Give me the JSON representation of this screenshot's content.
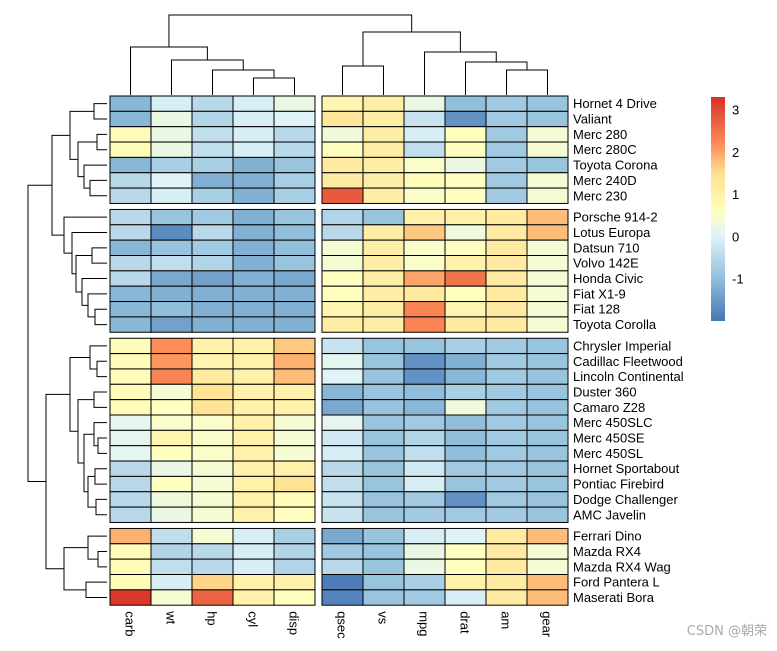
{
  "chart_data": {
    "type": "heatmap",
    "title": "",
    "rows": [
      "Hornet 4 Drive",
      "Valiant",
      "Merc 280",
      "Merc 280C",
      "Toyota Corona",
      "Merc 240D",
      "Merc 230",
      "Porsche 914-2",
      "Lotus Europa",
      "Datsun 710",
      "Volvo 142E",
      "Honda Civic",
      "Fiat X1-9",
      "Fiat 128",
      "Toyota Corolla",
      "Chrysler Imperial",
      "Cadillac Fleetwood",
      "Lincoln Continental",
      "Duster 360",
      "Camaro Z28",
      "Merc 450SLC",
      "Merc 450SE",
      "Merc 450SL",
      "Hornet Sportabout",
      "Pontiac Firebird",
      "Dodge Challenger",
      "AMC Javelin",
      "Ferrari Dino",
      "Mazda RX4",
      "Mazda RX4 Wag",
      "Ford Pantera L",
      "Maserati Bora"
    ],
    "columns": [
      "carb",
      "wt",
      "hp",
      "cyl",
      "disp",
      "qsec",
      "vs",
      "mpg",
      "drat",
      "am",
      "gear"
    ],
    "row_gaps_after": [
      6,
      14,
      26
    ],
    "column_gaps_after": [
      4
    ],
    "values": [
      [
        -1.1,
        -0.1,
        -0.5,
        -0.1,
        0.2,
        0.9,
        1.1,
        0.2,
        -1.0,
        -0.8,
        -0.9
      ],
      [
        -1.1,
        0.2,
        -0.6,
        -0.1,
        0.0,
        1.3,
        1.1,
        -0.3,
        -1.6,
        -0.8,
        -0.9
      ],
      [
        0.7,
        0.2,
        -0.4,
        -0.1,
        -0.5,
        0.3,
        1.1,
        -0.1,
        0.6,
        -0.8,
        0.4
      ],
      [
        0.7,
        0.2,
        -0.4,
        -0.1,
        -0.5,
        0.6,
        1.1,
        -0.4,
        0.6,
        -0.8,
        0.4
      ],
      [
        -1.1,
        -0.7,
        -0.7,
        -1.2,
        -0.9,
        1.2,
        1.1,
        0.5,
        0.2,
        -0.8,
        -0.9
      ],
      [
        -0.5,
        -0.0,
        -1.2,
        -1.2,
        -0.7,
        1.2,
        1.1,
        0.7,
        0.6,
        -0.8,
        0.4
      ],
      [
        -0.5,
        -0.1,
        -0.7,
        -1.2,
        -0.7,
        2.8,
        1.1,
        0.5,
        0.6,
        -0.8,
        0.4
      ],
      [
        -0.5,
        -0.9,
        -0.8,
        -1.2,
        -0.9,
        -0.6,
        -0.9,
        1.0,
        1.0,
        1.2,
        1.8
      ],
      [
        -0.5,
        -1.7,
        -0.5,
        -1.2,
        -1.0,
        -0.5,
        1.1,
        1.7,
        0.3,
        1.2,
        1.8
      ],
      [
        -1.1,
        -0.9,
        -0.8,
        -1.2,
        -1.0,
        0.4,
        1.1,
        0.5,
        0.6,
        1.2,
        0.4
      ],
      [
        -0.5,
        -0.4,
        -0.6,
        -1.2,
        -0.9,
        0.4,
        1.1,
        0.5,
        1.0,
        1.2,
        0.4
      ],
      [
        -0.5,
        -1.3,
        -1.4,
        -1.2,
        -1.3,
        0.6,
        1.1,
        2.0,
        2.5,
        1.2,
        0.4
      ],
      [
        -1.1,
        -1.2,
        -1.2,
        -1.2,
        -1.2,
        0.6,
        1.1,
        1.2,
        0.6,
        1.2,
        0.4
      ],
      [
        -1.1,
        -1.0,
        -1.2,
        -1.2,
        -1.2,
        0.9,
        1.1,
        2.3,
        0.9,
        1.2,
        0.4
      ],
      [
        -1.1,
        -1.4,
        -1.2,
        -1.2,
        -1.2,
        1.1,
        1.1,
        2.3,
        1.2,
        1.2,
        0.4
      ],
      [
        0.7,
        2.2,
        1.0,
        1.0,
        1.7,
        -0.3,
        -0.9,
        -0.9,
        -0.7,
        -0.8,
        -0.9
      ],
      [
        0.7,
        2.1,
        0.9,
        1.0,
        1.9,
        0.1,
        -0.9,
        -1.6,
        -1.2,
        -0.8,
        -0.9
      ],
      [
        0.7,
        2.3,
        1.2,
        1.0,
        1.8,
        -0.0,
        -0.9,
        -1.6,
        -1.1,
        -0.8,
        -0.9
      ],
      [
        0.7,
        0.4,
        1.4,
        1.0,
        1.0,
        -1.1,
        -0.9,
        -1.0,
        -0.7,
        -0.8,
        -0.9
      ],
      [
        0.7,
        0.6,
        1.4,
        1.0,
        1.0,
        -1.3,
        -0.9,
        -1.1,
        0.3,
        -0.8,
        -0.9
      ],
      [
        0.1,
        0.5,
        0.5,
        1.0,
        0.4,
        0.1,
        -0.9,
        -0.8,
        -1.0,
        -0.8,
        -0.9
      ],
      [
        0.1,
        0.9,
        0.5,
        1.0,
        0.4,
        -0.2,
        -0.9,
        -0.6,
        -1.0,
        -0.8,
        -0.9
      ],
      [
        0.1,
        0.6,
        0.5,
        1.0,
        0.4,
        -0.1,
        -0.9,
        -0.4,
        -1.0,
        -0.8,
        -0.9
      ],
      [
        -0.5,
        0.2,
        0.4,
        1.0,
        1.0,
        -0.5,
        -0.9,
        -0.2,
        -0.8,
        -0.8,
        -0.9
      ],
      [
        -0.5,
        0.6,
        0.4,
        1.0,
        1.4,
        -0.4,
        -0.9,
        -0.1,
        -0.9,
        -0.8,
        -0.9
      ],
      [
        -0.5,
        0.3,
        0.4,
        1.0,
        0.7,
        -0.3,
        -0.9,
        -0.8,
        -1.6,
        -0.8,
        -0.9
      ],
      [
        -0.5,
        0.2,
        0.4,
        1.0,
        0.6,
        -0.3,
        -0.9,
        -0.8,
        -0.8,
        -0.8,
        -0.9
      ],
      [
        1.9,
        -0.4,
        0.4,
        -0.1,
        -0.7,
        -1.3,
        -0.9,
        -0.1,
        0.0,
        1.2,
        1.8
      ],
      [
        0.7,
        -0.6,
        -0.5,
        -0.1,
        -0.6,
        -0.8,
        -0.9,
        0.2,
        0.6,
        1.2,
        0.4
      ],
      [
        0.7,
        -0.4,
        -0.5,
        -0.1,
        -0.6,
        -0.5,
        -0.9,
        0.2,
        0.6,
        1.2,
        0.4
      ],
      [
        0.7,
        -0.1,
        1.6,
        1.0,
        1.0,
        -1.9,
        -0.9,
        -0.7,
        1.0,
        1.2,
        1.8
      ],
      [
        3.2,
        0.4,
        2.7,
        1.0,
        0.6,
        -1.8,
        -0.9,
        -0.8,
        -0.1,
        1.2,
        1.8
      ]
    ],
    "color_scale": {
      "min": -2,
      "max": 3.3,
      "stops": [
        {
          "value": -2.0,
          "color": "#4575b4"
        },
        {
          "value": -1.0,
          "color": "#91bfdb"
        },
        {
          "value": 0.0,
          "color": "#e0f3f8"
        },
        {
          "value": 0.6,
          "color": "#ffffbf"
        },
        {
          "value": 1.5,
          "color": "#fee090"
        },
        {
          "value": 2.2,
          "color": "#fc8d59"
        },
        {
          "value": 3.3,
          "color": "#d73027"
        }
      ]
    },
    "legend": {
      "position": "right",
      "ticks": [
        "3",
        "2",
        "1",
        "0",
        "-1"
      ]
    },
    "column_dendrogram": true,
    "row_dendrogram": true
  },
  "watermark": "CSDN @朝荣"
}
